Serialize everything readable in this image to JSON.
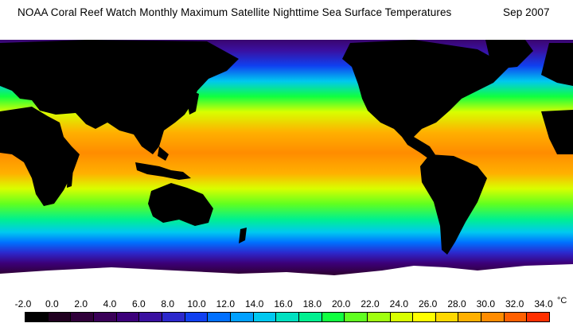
{
  "title": "NOAA Coral Reef Watch Monthly Maximum Satellite Nighttime Sea Surface Temperatures",
  "date": "Sep 2007",
  "legend": {
    "ticks": [
      "-2.0",
      "0.0",
      "2.0",
      "4.0",
      "6.0",
      "8.0",
      "10.0",
      "12.0",
      "14.0",
      "16.0",
      "18.0",
      "20.0",
      "22.0",
      "24.0",
      "26.0",
      "28.0",
      "30.0",
      "32.0",
      "34.0"
    ],
    "unit": "°C",
    "colors": [
      "#000000",
      "#200020",
      "#30003a",
      "#3a0058",
      "#3c007a",
      "#3a10a0",
      "#2c28cc",
      "#1040f0",
      "#0070ff",
      "#00a0ff",
      "#00c8f0",
      "#00e0c0",
      "#00f090",
      "#10ff40",
      "#60ff20",
      "#a0ff10",
      "#d8ff00",
      "#ffff00",
      "#ffd800",
      "#ffb000",
      "#ff8c00",
      "#ff6000",
      "#ff3000"
    ]
  },
  "colors": {
    "land": "#000000",
    "ice": "#ffffff"
  }
}
